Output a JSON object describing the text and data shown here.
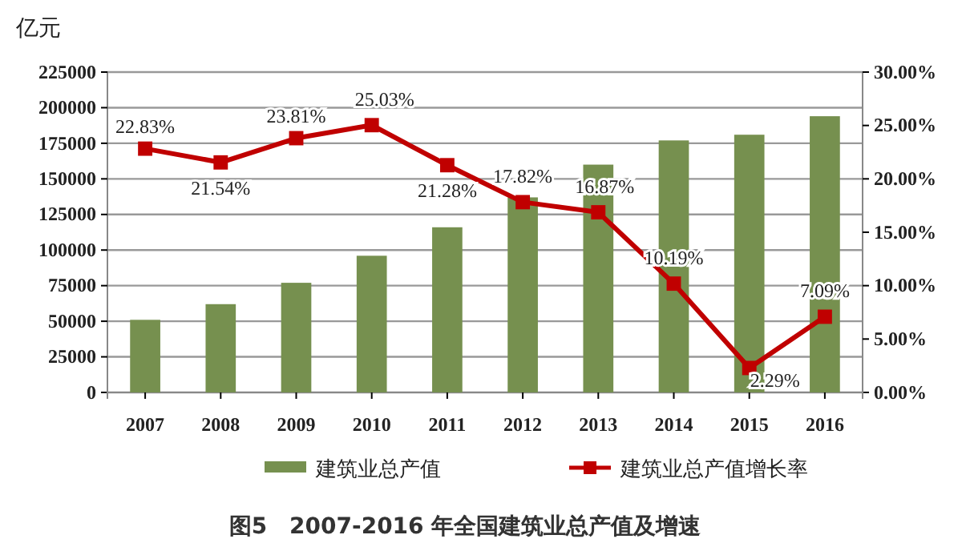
{
  "chart_data": {
    "type": "bar",
    "title": "图5　2007-2016 年全国建筑业总产值及增速",
    "ylabel": "亿元",
    "categories": [
      "2007",
      "2008",
      "2009",
      "2010",
      "2011",
      "2012",
      "2013",
      "2014",
      "2015",
      "2016"
    ],
    "series": [
      {
        "name": "建筑业总产值",
        "color": "#76904f",
        "values": [
          51000,
          62000,
          77000,
          96000,
          116000,
          137000,
          160000,
          177000,
          181000,
          194000
        ]
      },
      {
        "name": "建筑业总产值增长率",
        "type": "line",
        "axis": "y2",
        "color": "#c00000",
        "values": [
          22.83,
          21.54,
          23.81,
          25.03,
          21.28,
          17.82,
          16.87,
          10.19,
          2.29,
          7.09
        ],
        "value_labels": [
          "22.83%",
          "21.54%",
          "23.81%",
          "25.03%",
          "21.28%",
          "17.82%",
          "16.87%",
          "10.19%",
          "2.29%",
          "7.09%"
        ]
      }
    ],
    "ylim": [
      0,
      225000
    ],
    "yticks": [
      0,
      25000,
      50000,
      75000,
      100000,
      125000,
      150000,
      175000,
      200000,
      225000
    ],
    "y2lim": [
      0,
      30
    ],
    "y2ticks": [
      {
        "value": 0,
        "label": "0.00%"
      },
      {
        "value": 5,
        "label": "5.00%"
      },
      {
        "value": 10,
        "label": "10.00%"
      },
      {
        "value": 15,
        "label": "15.00%"
      },
      {
        "value": 20,
        "label": "20.00%"
      },
      {
        "value": 25,
        "label": "25.00%"
      },
      {
        "value": 30,
        "label": "30.00%"
      }
    ],
    "grid": "y",
    "legend": "bottom",
    "marker": "square",
    "line_style": "solid"
  }
}
